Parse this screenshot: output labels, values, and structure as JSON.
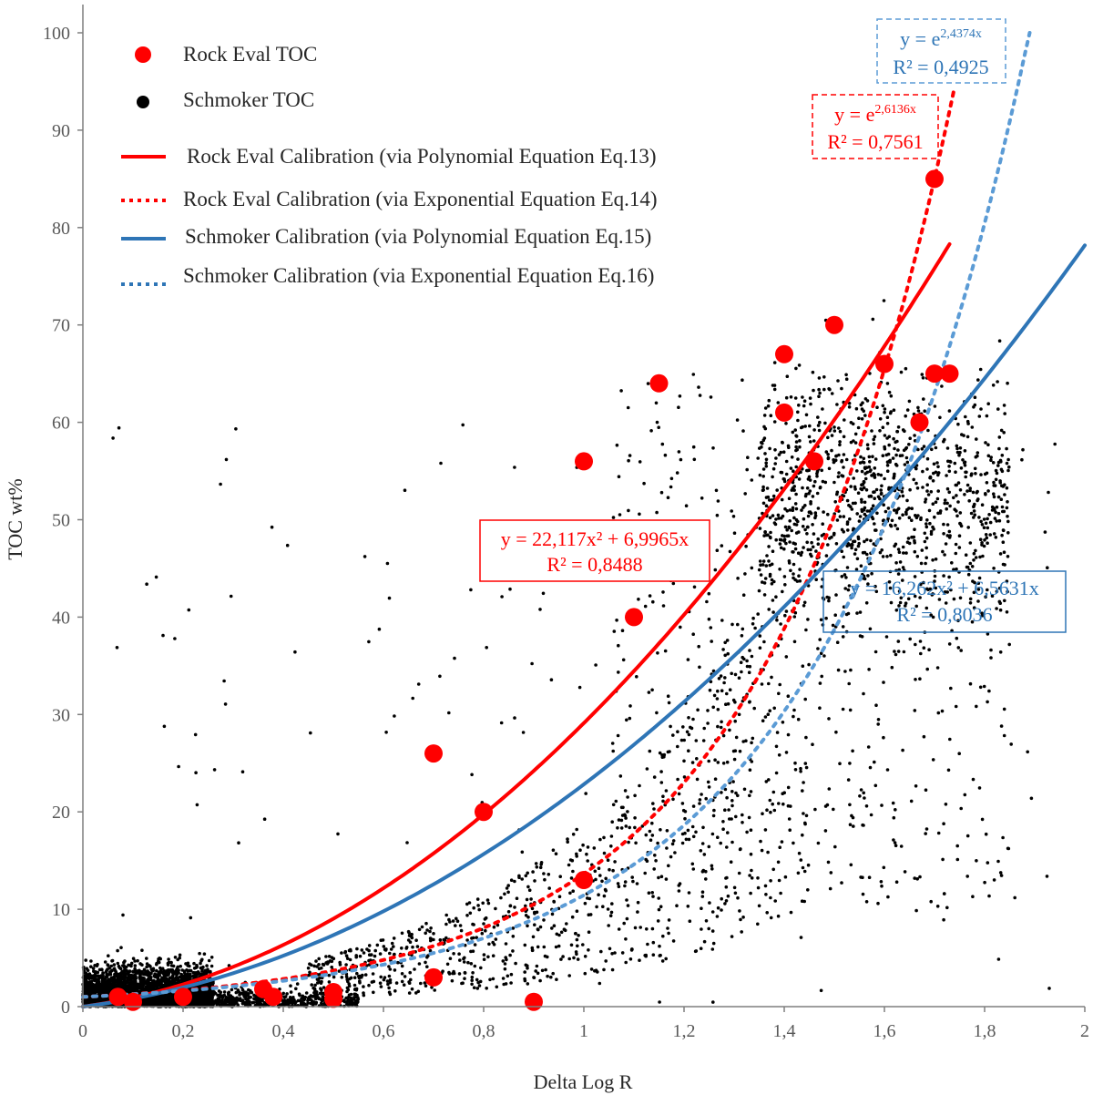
{
  "chart_data": {
    "type": "scatter",
    "xlabel": "Delta Log R",
    "ylabel": "TOC  wt%",
    "xlim": [
      0,
      2
    ],
    "ylim": [
      0,
      100
    ],
    "x_ticks": [
      "0",
      "0,2",
      "0,4",
      "0,6",
      "0,8",
      "1",
      "1,2",
      "1,4",
      "1,6",
      "1,8",
      "2"
    ],
    "y_ticks": [
      "0",
      "10",
      "20",
      "30",
      "40",
      "50",
      "60",
      "70",
      "80",
      "90",
      "100"
    ],
    "legend_position": "top-left",
    "legend": [
      {
        "key": "rock_points",
        "label": "Rock Eval TOC"
      },
      {
        "key": "schmoker_points",
        "label": "Schmoker TOC"
      },
      {
        "key": "rock_poly",
        "label": "Rock Eval Calibration (via Polynomial Equation Eq.13)"
      },
      {
        "key": "rock_exp",
        "label": "Rock Eval Calibration (via Exponential Equation Eq.14)"
      },
      {
        "key": "schm_poly",
        "label": "Schmoker Calibration (via Polynomial Equation Eq.15)"
      },
      {
        "key": "schm_exp",
        "label": "Schmoker Calibration (via Exponential Equation Eq.16)"
      }
    ],
    "rock_eval_points": [
      [
        0.07,
        1
      ],
      [
        0.1,
        0.5
      ],
      [
        0.2,
        1
      ],
      [
        0.36,
        1.8
      ],
      [
        0.38,
        1
      ],
      [
        0.5,
        1.5
      ],
      [
        0.5,
        0.8
      ],
      [
        0.7,
        3
      ],
      [
        0.7,
        26
      ],
      [
        0.8,
        20
      ],
      [
        0.9,
        0.5
      ],
      [
        1.0,
        13
      ],
      [
        1.0,
        56
      ],
      [
        1.1,
        40
      ],
      [
        1.15,
        64
      ],
      [
        1.4,
        67
      ],
      [
        1.4,
        61
      ],
      [
        1.46,
        56
      ],
      [
        1.5,
        70
      ],
      [
        1.6,
        66
      ],
      [
        1.67,
        60
      ],
      [
        1.7,
        65
      ],
      [
        1.73,
        65
      ],
      [
        1.7,
        85
      ]
    ],
    "schmoker_points": {
      "approx_count": 6000,
      "x_range": [
        0,
        1.85
      ],
      "y_range": [
        0,
        75
      ]
    },
    "series": [
      {
        "name": "Rock Eval Calibration (via Polynomial Equation Eq.13)",
        "a": 22.117,
        "b": 6.9965,
        "model": "poly",
        "x_range": [
          0,
          1.73
        ]
      },
      {
        "name": "Rock Eval Calibration (via Exponential Equation Eq.14)",
        "k": 2.6136,
        "model": "exp",
        "x_range": [
          0,
          1.74
        ]
      },
      {
        "name": "Schmoker Calibration (via Polynomial Equation Eq.15)",
        "a": 16.262,
        "b": 6.5631,
        "model": "poly",
        "x_range": [
          0,
          2
        ]
      },
      {
        "name": "Schmoker Calibration (via Exponential Equation Eq.16)",
        "k": 2.4374,
        "model": "exp",
        "x_range": [
          0,
          1.89
        ]
      }
    ],
    "annotations": {
      "rock_poly": {
        "line1": "y = 22,117x² + 6,9965x",
        "line2": "R² = 0,8488"
      },
      "schm_poly": {
        "line1": "y = 16,262x² + 6,5631x",
        "line2": "R² = 0,8036"
      },
      "rock_exp": {
        "base": "y = e",
        "sup": "2,6136x",
        "line2": "R² = 0,7561"
      },
      "schm_exp": {
        "base": "y = e",
        "sup": "2,4374x",
        "line2": "R² = 0,4925"
      }
    },
    "colors": {
      "red": "#ff0000",
      "blue": "#2e75b6",
      "lightblue": "#5b9bd5",
      "black": "#000000",
      "axis": "#7f7f7f"
    }
  }
}
